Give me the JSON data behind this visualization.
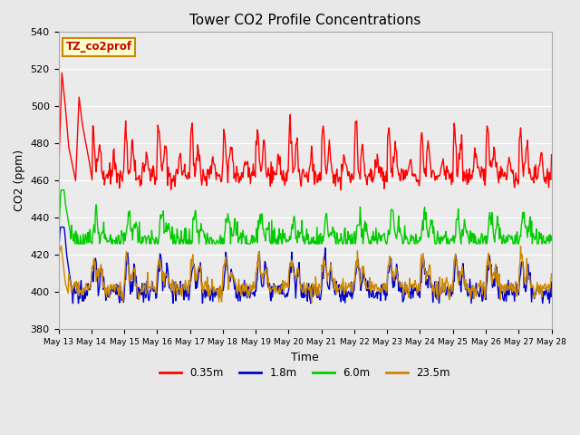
{
  "title": "Tower CO2 Profile Concentrations",
  "xlabel": "Time",
  "ylabel": "CO2 (ppm)",
  "ylim": [
    380,
    540
  ],
  "yticks": [
    380,
    400,
    420,
    440,
    460,
    480,
    500,
    520,
    540
  ],
  "x_tick_labels": [
    "May 13",
    "May 14",
    "May 15",
    "May 16",
    "May 17",
    "May 18",
    "May 19",
    "May 20",
    "May 21",
    "May 22",
    "May 23",
    "May 24",
    "May 25",
    "May 26",
    "May 27",
    "May 28"
  ],
  "legend_label": "TZ_co2prof",
  "series_labels": [
    "0.35m",
    "1.8m",
    "6.0m",
    "23.5m"
  ],
  "series_colors": [
    "#ff0000",
    "#0000cc",
    "#00cc00",
    "#cc8800"
  ],
  "background_color": "#e8e8e8",
  "plot_bg_color": "#ebebeb",
  "linewidth": 1.0,
  "n_points": 720
}
